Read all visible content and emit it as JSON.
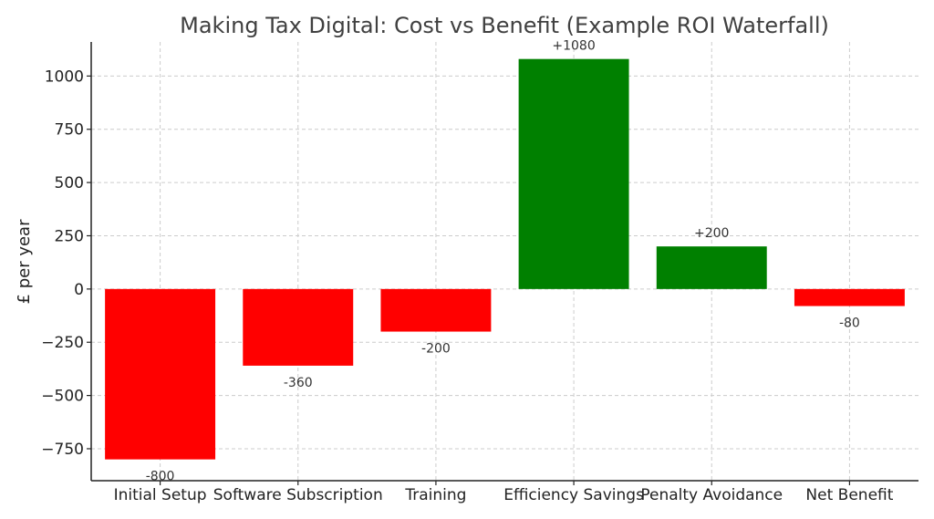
{
  "chart_data": {
    "type": "bar",
    "title": "Making Tax Digital: Cost vs Benefit (Example ROI Waterfall)",
    "xlabel": "",
    "ylabel": "£ per year",
    "categories": [
      "Initial Setup",
      "Software Subscription",
      "Training",
      "Efficiency Savings",
      "Penalty Avoidance",
      "Net Benefit"
    ],
    "values": [
      -800,
      -360,
      -200,
      1080,
      200,
      -80
    ],
    "data_labels": [
      "-800",
      "-360",
      "-200",
      "+1080",
      "+200",
      "-80"
    ],
    "bar_colors": [
      "#ff0000",
      "#ff0000",
      "#ff0000",
      "#008000",
      "#008000",
      "#ff0000"
    ],
    "ylim": [
      -900,
      1160
    ],
    "yticks": [
      -750,
      -500,
      -250,
      0,
      250,
      500,
      750,
      1000
    ],
    "ytick_labels": [
      "−750",
      "−500",
      "−250",
      "0",
      "250",
      "500",
      "750",
      "1000"
    ],
    "grid": true
  }
}
